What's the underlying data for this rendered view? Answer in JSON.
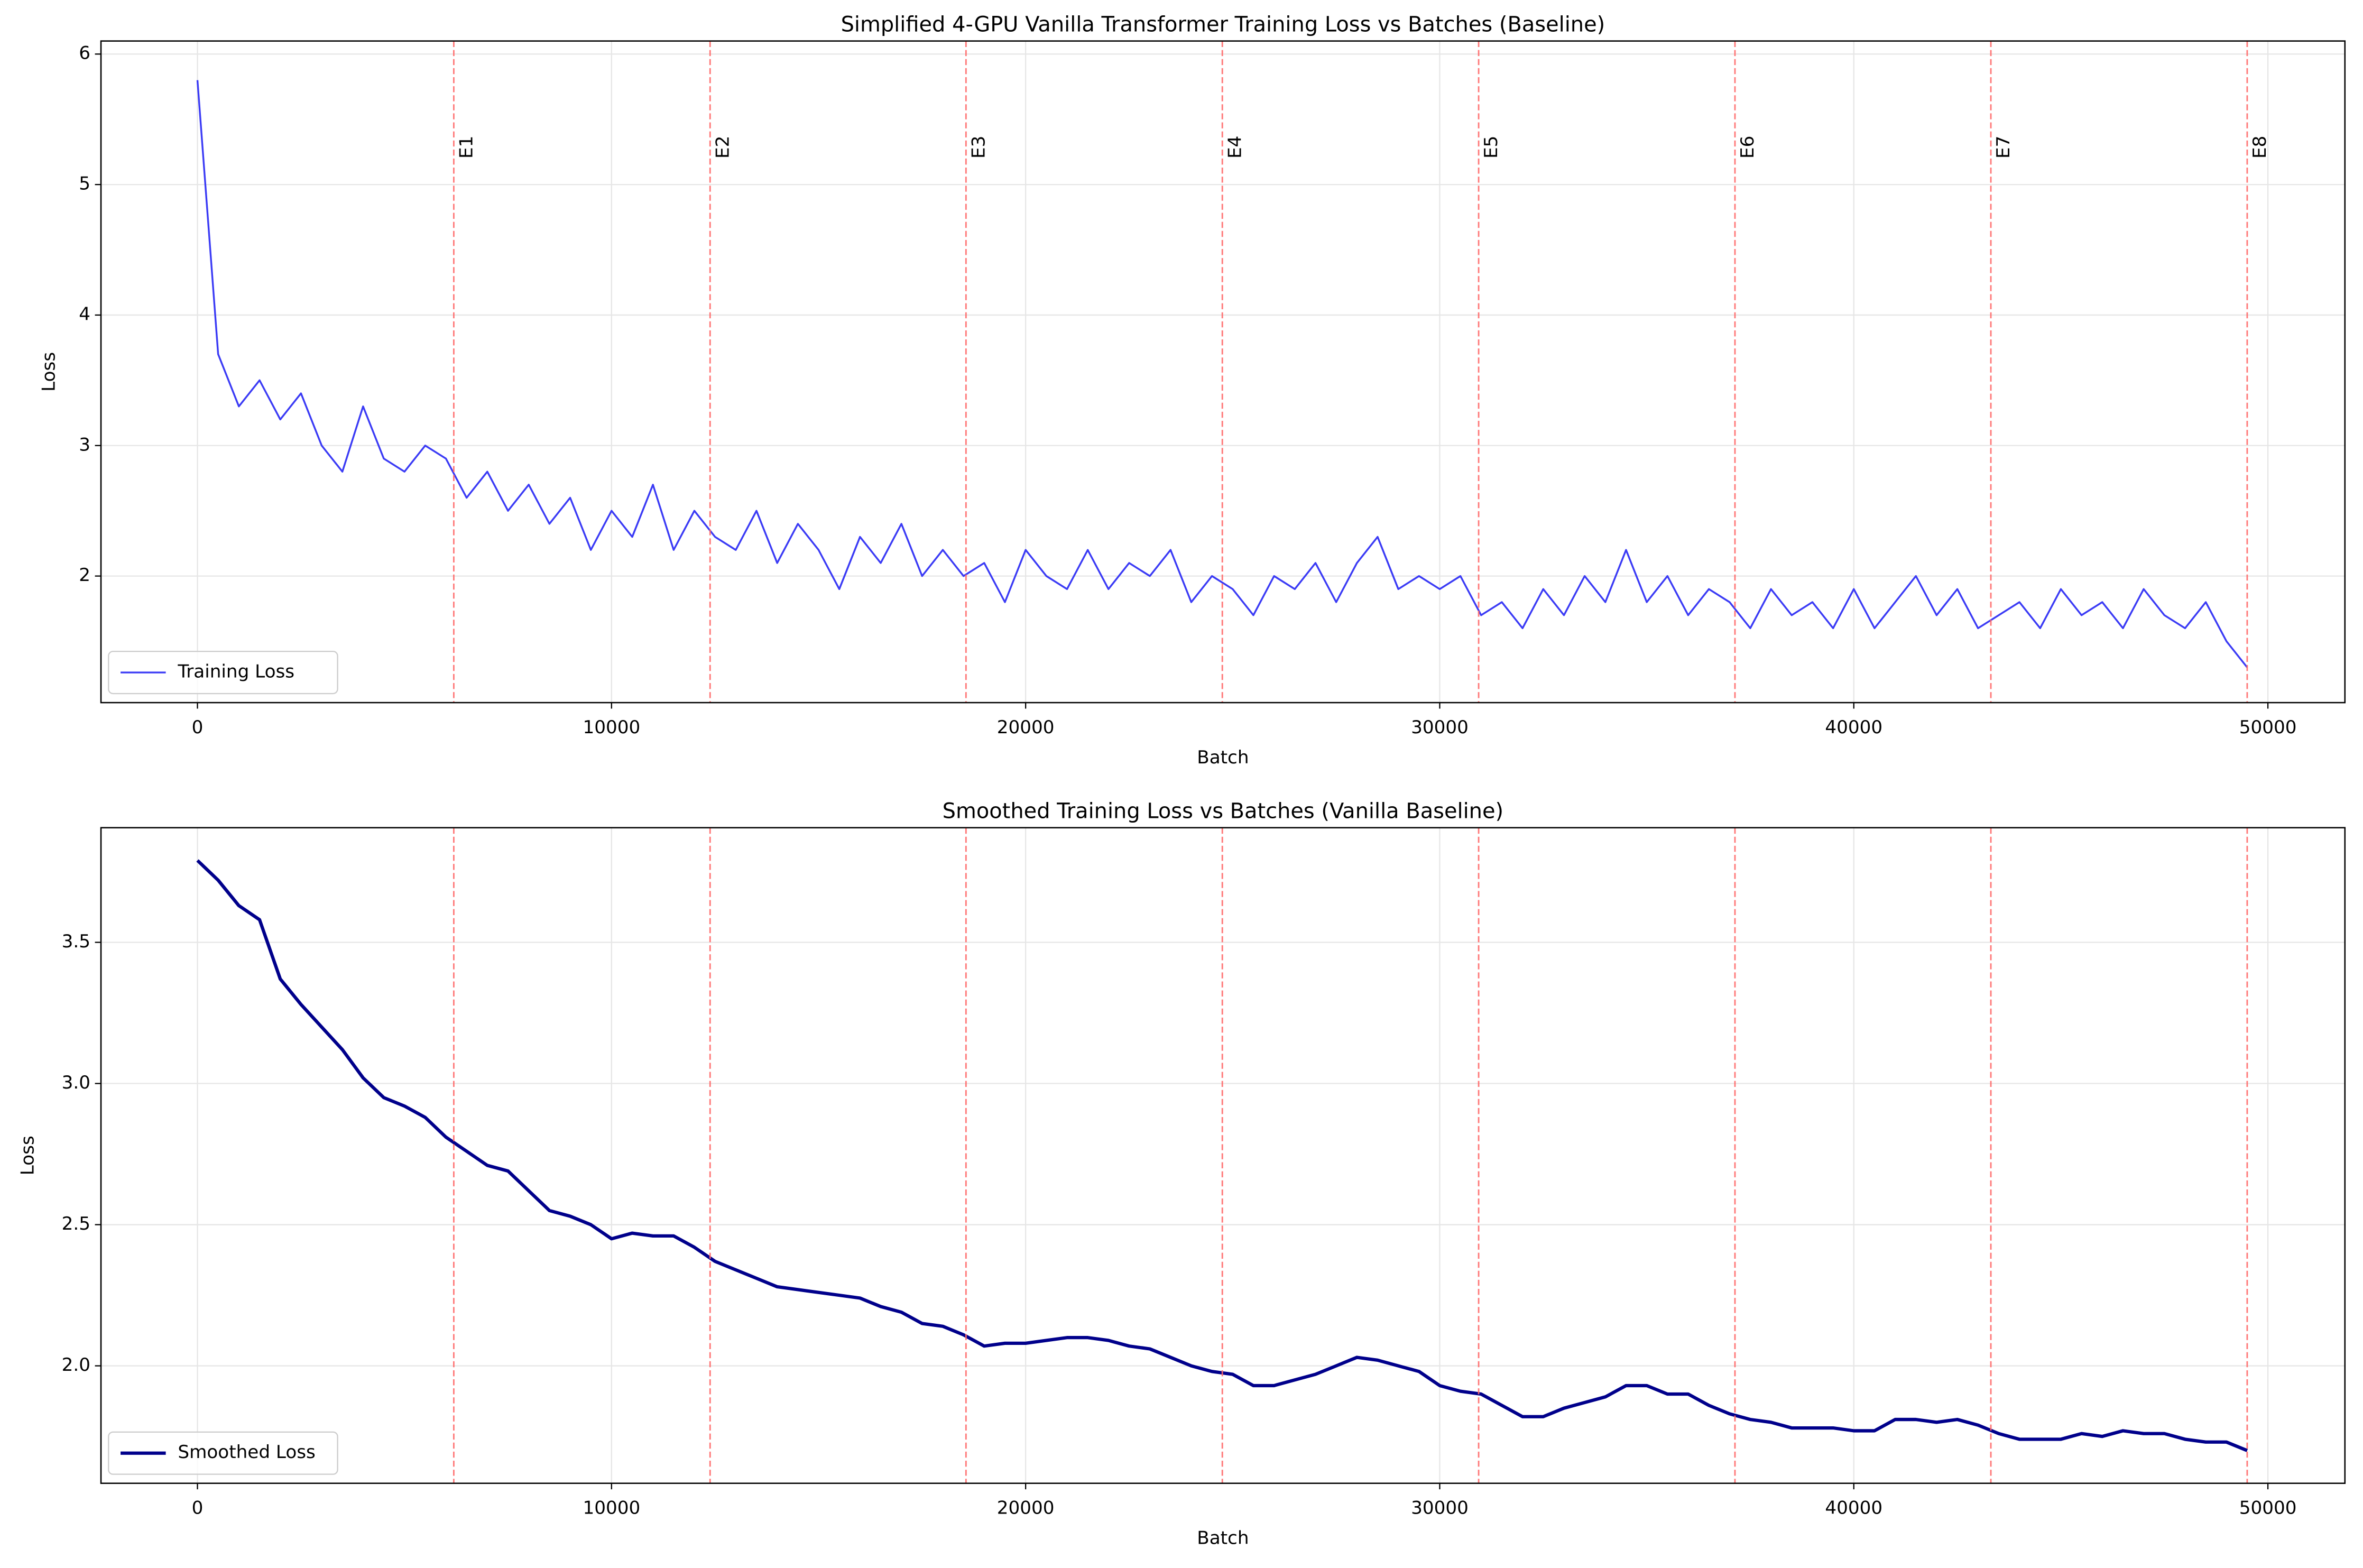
{
  "chart_data": [
    {
      "type": "line",
      "title": "Simplified 4-GPU Vanilla Transformer Training Loss vs Batches (Baseline)",
      "x_label": "Batch",
      "y_label": "Loss",
      "x": [
        0,
        500,
        1000,
        1500,
        2000,
        2500,
        3000,
        3500,
        4000,
        4500,
        5000,
        5500,
        6000,
        6500,
        7000,
        7500,
        8000,
        8500,
        9000,
        9500,
        10000,
        10500,
        11000,
        11500,
        12000,
        12500,
        13000,
        13500,
        14000,
        14500,
        15000,
        15500,
        16000,
        16500,
        17000,
        17500,
        18000,
        18500,
        19000,
        19500,
        20000,
        20500,
        21000,
        21500,
        22000,
        22500,
        23000,
        23500,
        24000,
        24500,
        25000,
        25500,
        26000,
        26500,
        27000,
        27500,
        28000,
        28500,
        29000,
        29500,
        30000,
        30500,
        31000,
        31500,
        32000,
        32500,
        33000,
        33500,
        34000,
        34500,
        35000,
        35500,
        36000,
        36500,
        37000,
        37500,
        38000,
        38500,
        39000,
        39500,
        40000,
        40500,
        41000,
        41500,
        42000,
        42500,
        43000,
        43500,
        44000,
        44500,
        45000,
        45500,
        46000,
        46500,
        47000,
        47500,
        48000,
        48500,
        49000,
        49500
      ],
      "series": [
        {
          "name": "Training Loss",
          "color": "#3b3bf5",
          "line_width": 1.2,
          "values": [
            5.8,
            3.7,
            3.3,
            3.5,
            3.2,
            3.4,
            3.0,
            2.8,
            3.3,
            2.9,
            2.8,
            3.0,
            2.9,
            2.6,
            2.8,
            2.5,
            2.7,
            2.4,
            2.6,
            2.2,
            2.5,
            2.3,
            2.7,
            2.2,
            2.5,
            2.3,
            2.2,
            2.5,
            2.1,
            2.4,
            2.2,
            1.9,
            2.3,
            2.1,
            2.4,
            2.0,
            2.2,
            2.0,
            2.1,
            1.8,
            2.2,
            2.0,
            1.9,
            2.2,
            1.9,
            2.1,
            2.0,
            2.2,
            1.8,
            2.0,
            1.9,
            1.7,
            2.0,
            1.9,
            2.1,
            1.8,
            2.1,
            2.3,
            1.9,
            2.0,
            1.9,
            2.0,
            1.7,
            1.8,
            1.6,
            1.9,
            1.7,
            2.0,
            1.8,
            2.2,
            1.8,
            2.0,
            1.7,
            1.9,
            1.8,
            1.6,
            1.9,
            1.7,
            1.8,
            1.6,
            1.9,
            1.6,
            1.8,
            2.0,
            1.7,
            1.9,
            1.6,
            1.7,
            1.8,
            1.6,
            1.9,
            1.7,
            1.8,
            1.6,
            1.9,
            1.7,
            1.6,
            1.8,
            1.5,
            1.3
          ]
        }
      ],
      "epochs": {
        "x": [
          6190,
          12380,
          18560,
          24750,
          30940,
          37130,
          43310,
          49500
        ],
        "labels": [
          "E1",
          "E2",
          "E3",
          "E4",
          "E5",
          "E6",
          "E7",
          "E8"
        ],
        "color": "#ff6b6b"
      },
      "xlim": [
        -2330,
        51860
      ],
      "ylim": [
        1.03,
        6.1
      ],
      "xticks": [
        0,
        10000,
        20000,
        30000,
        40000,
        50000
      ],
      "yticks": [
        2,
        3,
        4,
        5,
        6
      ],
      "grid": true,
      "legend": "lower left"
    },
    {
      "type": "line",
      "title": "Smoothed Training Loss vs Batches (Vanilla Baseline)",
      "x_label": "Batch",
      "y_label": "Loss",
      "x": [
        0,
        500,
        1000,
        1500,
        2000,
        2500,
        3000,
        3500,
        4000,
        4500,
        5000,
        5500,
        6000,
        6500,
        7000,
        7500,
        8000,
        8500,
        9000,
        9500,
        10000,
        10500,
        11000,
        11500,
        12000,
        12500,
        13000,
        13500,
        14000,
        14500,
        15000,
        15500,
        16000,
        16500,
        17000,
        17500,
        18000,
        18500,
        19000,
        19500,
        20000,
        20500,
        21000,
        21500,
        22000,
        22500,
        23000,
        23500,
        24000,
        24500,
        25000,
        25500,
        26000,
        26500,
        27000,
        27500,
        28000,
        28500,
        29000,
        29500,
        30000,
        30500,
        31000,
        31500,
        32000,
        32500,
        33000,
        33500,
        34000,
        34500,
        35000,
        35500,
        36000,
        36500,
        37000,
        37500,
        38000,
        38500,
        39000,
        39500,
        40000,
        40500,
        41000,
        41500,
        42000,
        42500,
        43000,
        43500,
        44000,
        44500,
        45000,
        45500,
        46000,
        46500,
        47000,
        47500,
        48000,
        48500,
        49000,
        49500
      ],
      "series": [
        {
          "name": "Smoothed Loss",
          "color": "#00008b",
          "line_width": 2.2,
          "values": [
            3.79,
            3.72,
            3.63,
            3.58,
            3.37,
            3.28,
            3.2,
            3.12,
            3.02,
            2.95,
            2.92,
            2.88,
            2.81,
            2.76,
            2.71,
            2.69,
            2.62,
            2.55,
            2.53,
            2.5,
            2.45,
            2.47,
            2.46,
            2.46,
            2.42,
            2.37,
            2.34,
            2.31,
            2.28,
            2.27,
            2.26,
            2.25,
            2.24,
            2.21,
            2.19,
            2.15,
            2.14,
            2.11,
            2.07,
            2.08,
            2.08,
            2.09,
            2.1,
            2.1,
            2.09,
            2.07,
            2.06,
            2.03,
            2.0,
            1.98,
            1.97,
            1.93,
            1.93,
            1.95,
            1.97,
            2.0,
            2.03,
            2.02,
            2.0,
            1.98,
            1.93,
            1.91,
            1.9,
            1.86,
            1.82,
            1.82,
            1.85,
            1.87,
            1.89,
            1.93,
            1.93,
            1.9,
            1.9,
            1.86,
            1.83,
            1.81,
            1.8,
            1.78,
            1.78,
            1.78,
            1.77,
            1.77,
            1.81,
            1.81,
            1.8,
            1.81,
            1.79,
            1.76,
            1.74,
            1.74,
            1.74,
            1.76,
            1.75,
            1.77,
            1.76,
            1.76,
            1.74,
            1.73,
            1.73,
            1.7
          ]
        }
      ],
      "epochs": {
        "x": [
          6190,
          12380,
          18560,
          24750,
          30940,
          37130,
          43310,
          49500
        ],
        "color": "#ff6b6b"
      },
      "xlim": [
        -2330,
        51860
      ],
      "ylim": [
        1.584,
        3.906
      ],
      "xticks": [
        0,
        10000,
        20000,
        30000,
        40000,
        50000
      ],
      "yticks": [
        {
          "value": 2.0,
          "label": "2.0"
        },
        {
          "value": 2.5,
          "label": "2.5"
        },
        {
          "value": 3.0,
          "label": "3.0"
        },
        {
          "value": 3.5,
          "label": "3.5"
        }
      ],
      "grid": true,
      "legend": "lower left"
    }
  ]
}
